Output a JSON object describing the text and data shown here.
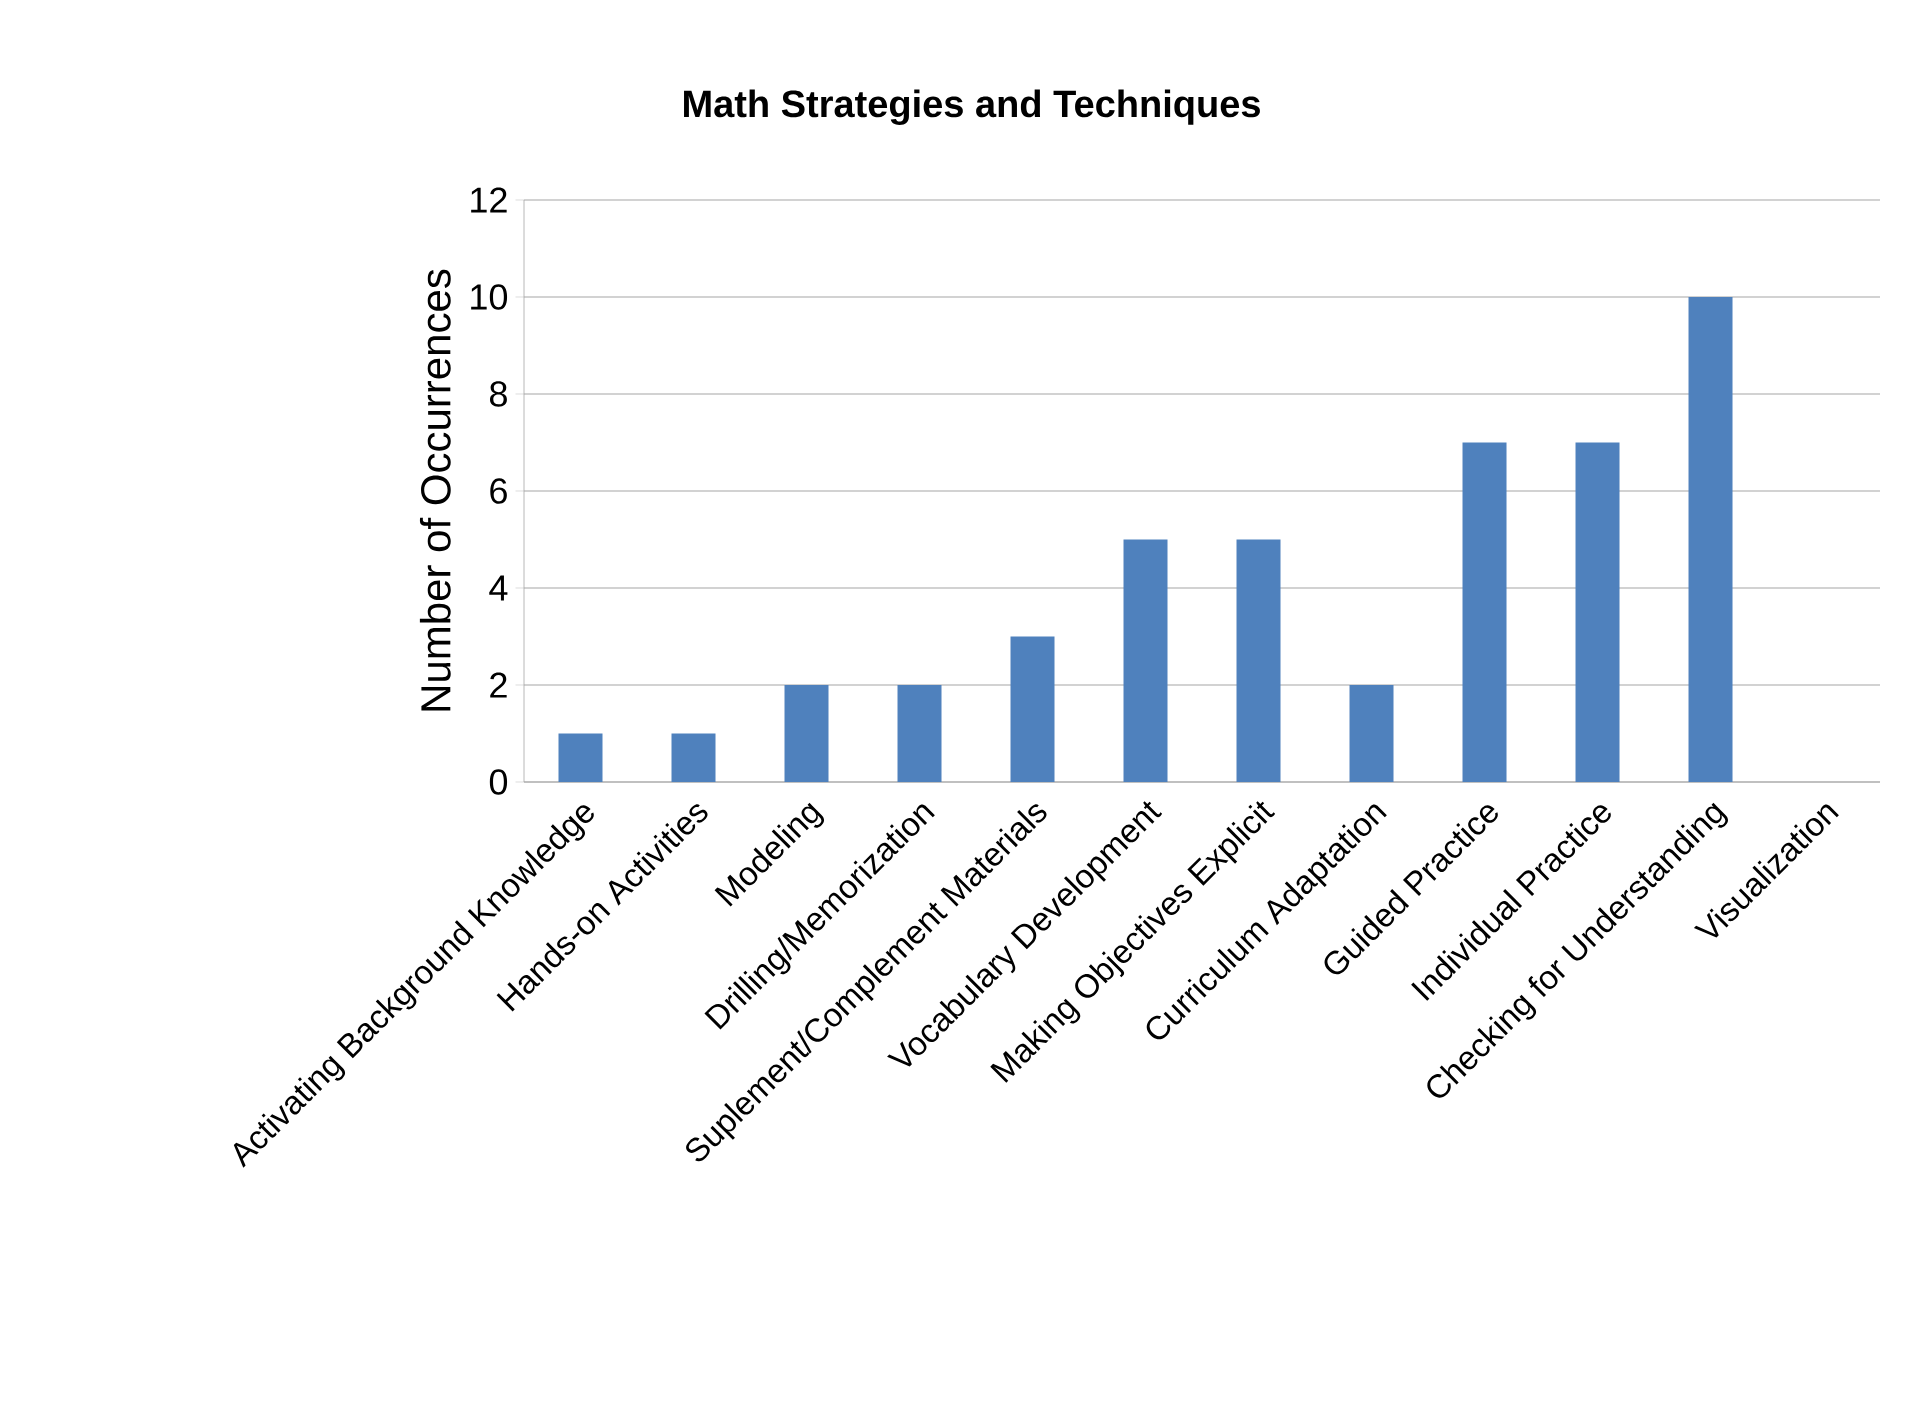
{
  "chart_data": {
    "type": "bar",
    "title": "Math Strategies and Techniques",
    "ylabel": "Number of Occurrences",
    "categories": [
      "Activating Background Knowledge",
      "Hands-on Activities",
      "Modeling",
      "Drilling/Memorization",
      "Suplement/Complement Materials",
      "Vocabulary Development",
      "Making Objectives Explicit",
      "Curriculum Adaptation",
      "Guided Practice",
      "Individual Practice",
      "Checking for Understanding",
      "Visualization"
    ],
    "values": [
      1,
      1,
      2,
      2,
      3,
      5,
      5,
      2,
      7,
      7,
      10,
      0
    ],
    "color": "#4f81bd",
    "ylim": [
      0,
      12
    ],
    "yticks": [
      0,
      2,
      4,
      6,
      8,
      10,
      12
    ],
    "grid": "y"
  }
}
